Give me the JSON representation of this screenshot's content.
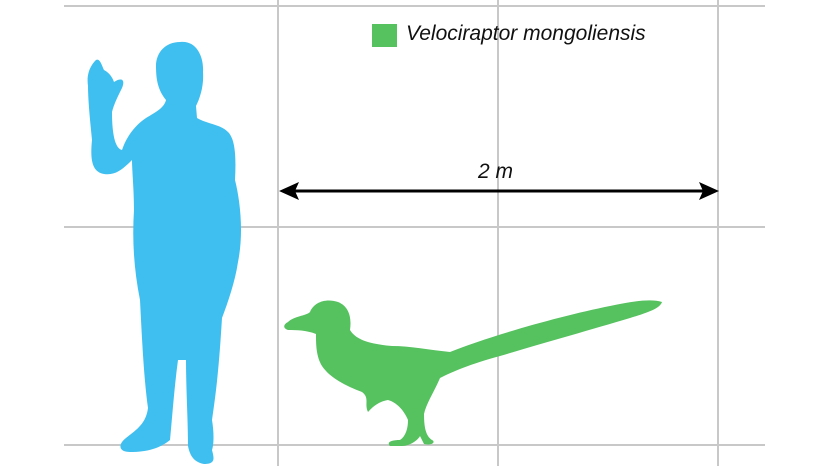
{
  "legend": {
    "label": "Velociraptor mongoliensis",
    "color": "#55c15f"
  },
  "scale_bar": {
    "label": "2 m"
  },
  "colors": {
    "human": "#3fbff0",
    "velociraptor": "#55c15f",
    "grid": "#c8c8c8",
    "arrow": "#000000"
  }
}
